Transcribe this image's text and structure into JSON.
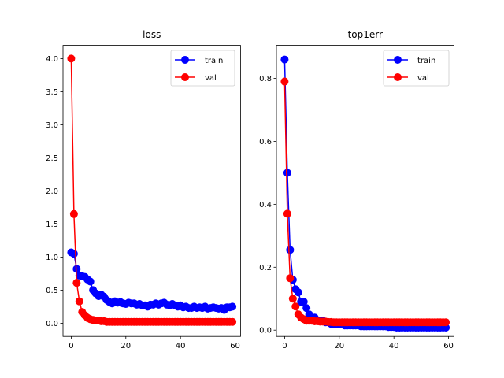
{
  "chart_data": [
    {
      "type": "line",
      "title": "loss",
      "xlabel": "",
      "ylabel": "",
      "xlim": [
        -3,
        62
      ],
      "ylim": [
        -0.2,
        4.2
      ],
      "xticks": [
        0,
        20,
        40,
        60
      ],
      "yticks": [
        0.0,
        0.5,
        1.0,
        1.5,
        2.0,
        2.5,
        3.0,
        3.5,
        4.0
      ],
      "xtick_labels": [
        "0",
        "20",
        "40",
        "60"
      ],
      "ytick_labels": [
        "0.0",
        "0.5",
        "1.0",
        "1.5",
        "2.0",
        "2.5",
        "3.0",
        "3.5",
        "4.0"
      ],
      "legend_position": "top-right",
      "grid": false,
      "x": [
        0,
        1,
        2,
        3,
        4,
        5,
        6,
        7,
        8,
        9,
        10,
        11,
        12,
        13,
        14,
        15,
        16,
        17,
        18,
        19,
        20,
        21,
        22,
        23,
        24,
        25,
        26,
        27,
        28,
        29,
        30,
        31,
        32,
        33,
        34,
        35,
        36,
        37,
        38,
        39,
        40,
        41,
        42,
        43,
        44,
        45,
        46,
        47,
        48,
        49,
        50,
        51,
        52,
        53,
        54,
        55,
        56,
        57,
        58,
        59
      ],
      "series": [
        {
          "name": "train",
          "color": "#0000ff",
          "values": [
            1.07,
            1.05,
            0.82,
            0.72,
            0.71,
            0.7,
            0.66,
            0.63,
            0.5,
            0.45,
            0.41,
            0.43,
            0.4,
            0.35,
            0.32,
            0.3,
            0.33,
            0.31,
            0.32,
            0.3,
            0.29,
            0.31,
            0.3,
            0.3,
            0.28,
            0.29,
            0.27,
            0.27,
            0.25,
            0.28,
            0.28,
            0.3,
            0.28,
            0.3,
            0.31,
            0.28,
            0.27,
            0.29,
            0.27,
            0.25,
            0.27,
            0.24,
            0.25,
            0.23,
            0.23,
            0.25,
            0.23,
            0.24,
            0.23,
            0.25,
            0.22,
            0.23,
            0.24,
            0.23,
            0.22,
            0.23,
            0.2,
            0.24,
            0.24,
            0.25
          ]
        },
        {
          "name": "val",
          "color": "#ff0000",
          "values": [
            4.0,
            1.65,
            0.61,
            0.33,
            0.17,
            0.12,
            0.08,
            0.06,
            0.05,
            0.04,
            0.04,
            0.03,
            0.03,
            0.02,
            0.02,
            0.02,
            0.02,
            0.02,
            0.02,
            0.02,
            0.02,
            0.02,
            0.02,
            0.02,
            0.02,
            0.02,
            0.02,
            0.02,
            0.02,
            0.02,
            0.02,
            0.02,
            0.02,
            0.02,
            0.02,
            0.02,
            0.02,
            0.02,
            0.02,
            0.02,
            0.02,
            0.02,
            0.02,
            0.02,
            0.02,
            0.02,
            0.02,
            0.02,
            0.02,
            0.02,
            0.02,
            0.02,
            0.02,
            0.02,
            0.02,
            0.02,
            0.02,
            0.02,
            0.02,
            0.02
          ]
        }
      ]
    },
    {
      "type": "line",
      "title": "top1err",
      "xlabel": "",
      "ylabel": "",
      "xlim": [
        -3,
        62
      ],
      "ylim": [
        -0.02,
        0.905
      ],
      "xticks": [
        0,
        20,
        40,
        60
      ],
      "yticks": [
        0.0,
        0.2,
        0.4,
        0.6,
        0.8
      ],
      "xtick_labels": [
        "0",
        "20",
        "40",
        "60"
      ],
      "ytick_labels": [
        "0.0",
        "0.2",
        "0.4",
        "0.6",
        "0.8"
      ],
      "legend_position": "top-right",
      "grid": false,
      "x": [
        0,
        1,
        2,
        3,
        4,
        5,
        6,
        7,
        8,
        9,
        10,
        11,
        12,
        13,
        14,
        15,
        16,
        17,
        18,
        19,
        20,
        21,
        22,
        23,
        24,
        25,
        26,
        27,
        28,
        29,
        30,
        31,
        32,
        33,
        34,
        35,
        36,
        37,
        38,
        39,
        40,
        41,
        42,
        43,
        44,
        45,
        46,
        47,
        48,
        49,
        50,
        51,
        52,
        53,
        54,
        55,
        56,
        57,
        58,
        59
      ],
      "series": [
        {
          "name": "train",
          "color": "#0000ff",
          "values": [
            0.86,
            0.5,
            0.255,
            0.16,
            0.13,
            0.12,
            0.09,
            0.09,
            0.07,
            0.05,
            0.04,
            0.04,
            0.03,
            0.03,
            0.03,
            0.025,
            0.025,
            0.02,
            0.02,
            0.02,
            0.02,
            0.02,
            0.015,
            0.015,
            0.015,
            0.015,
            0.015,
            0.015,
            0.012,
            0.012,
            0.012,
            0.012,
            0.012,
            0.012,
            0.012,
            0.012,
            0.012,
            0.012,
            0.01,
            0.01,
            0.01,
            0.008,
            0.008,
            0.008,
            0.008,
            0.008,
            0.008,
            0.008,
            0.008,
            0.008,
            0.008,
            0.008,
            0.008,
            0.008,
            0.008,
            0.008,
            0.008,
            0.008,
            0.008,
            0.008
          ]
        },
        {
          "name": "val",
          "color": "#ff0000",
          "values": [
            0.79,
            0.37,
            0.165,
            0.1,
            0.075,
            0.05,
            0.04,
            0.035,
            0.03,
            0.03,
            0.03,
            0.028,
            0.028,
            0.027,
            0.027,
            0.027,
            0.026,
            0.026,
            0.025,
            0.025,
            0.025,
            0.025,
            0.025,
            0.025,
            0.025,
            0.025,
            0.025,
            0.025,
            0.025,
            0.025,
            0.025,
            0.025,
            0.025,
            0.025,
            0.025,
            0.025,
            0.025,
            0.025,
            0.025,
            0.025,
            0.025,
            0.025,
            0.025,
            0.025,
            0.025,
            0.025,
            0.025,
            0.025,
            0.025,
            0.025,
            0.025,
            0.025,
            0.025,
            0.025,
            0.025,
            0.025,
            0.025,
            0.025,
            0.025,
            0.025
          ]
        }
      ]
    }
  ]
}
